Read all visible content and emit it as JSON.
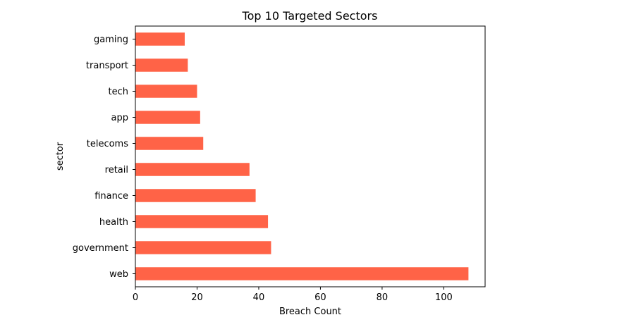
{
  "chart_data": {
    "type": "bar",
    "orientation": "horizontal",
    "title": "Top 10 Targeted Sectors",
    "xlabel": "Breach Count",
    "ylabel": "sector",
    "categories": [
      "web",
      "government",
      "health ",
      "finance",
      "retail",
      "telecoms",
      "app",
      "tech",
      "transport",
      "gaming"
    ],
    "values": [
      108,
      44,
      43,
      39,
      37,
      22,
      21,
      20,
      17,
      16
    ],
    "xlim": [
      0,
      113.4
    ],
    "xticks": [
      0,
      20,
      40,
      60,
      80,
      100
    ],
    "grid": false,
    "bar_color": "#ff6347"
  }
}
